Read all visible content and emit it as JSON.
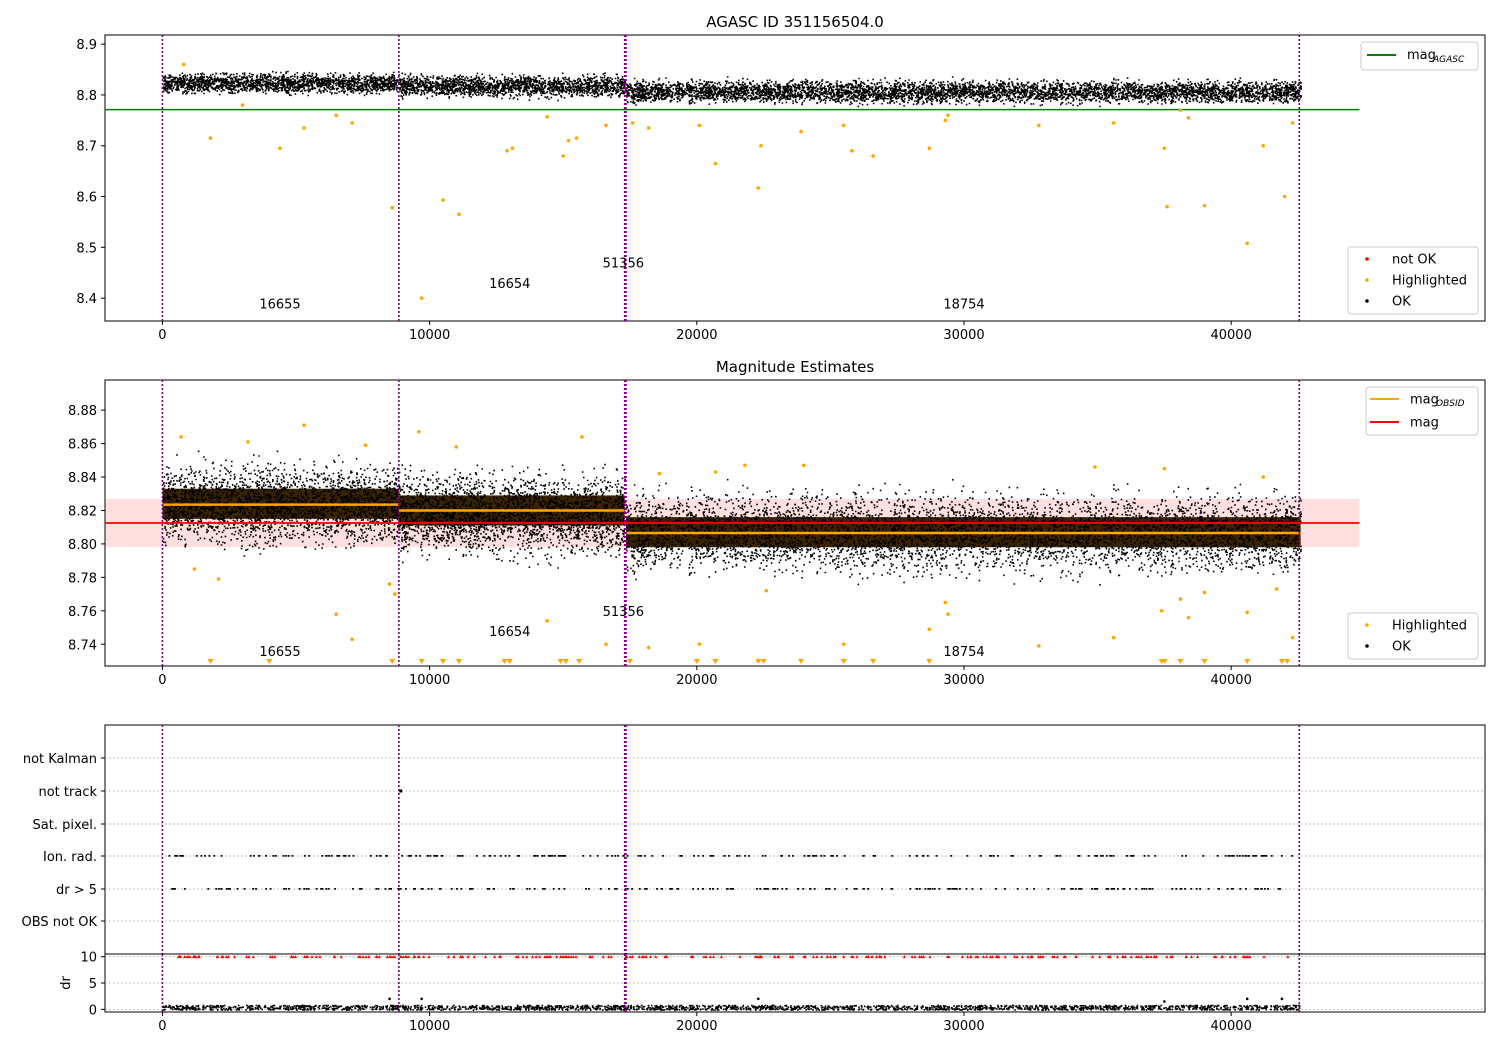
{
  "figure": {
    "title_top": "AGASC ID 351156504.0",
    "title_mid": "Magnitude Estimates"
  },
  "chart_data": [
    {
      "id": "agasc-panel",
      "type": "scatter",
      "title": "AGASC ID 351156504.0",
      "xlim": [
        -2150,
        49500
      ],
      "ylim": [
        8.355,
        8.918
      ],
      "x_ticks": [
        0,
        10000,
        20000,
        30000,
        40000
      ],
      "x_tick_labels": [
        "0",
        "10000",
        "20000",
        "30000",
        "40000"
      ],
      "y_ticks": [
        8.4,
        8.5,
        8.6,
        8.7,
        8.8,
        8.9
      ],
      "y_tick_labels": [
        "8.4",
        "8.5",
        "8.6",
        "8.7",
        "8.8",
        "8.9"
      ],
      "obs_boundaries": [
        0,
        8850,
        17300,
        17350,
        42550
      ],
      "obs_labels": [
        {
          "text": "16655",
          "x": 4400,
          "y": 8.38
        },
        {
          "text": "16654",
          "x": 13000,
          "y": 8.42
        },
        {
          "text": "51356",
          "x": 17250,
          "y": 8.46
        },
        {
          "text": "18754",
          "x": 30000,
          "y": 8.38
        }
      ],
      "mag_agasc": {
        "value": 8.771,
        "x_range": [
          -2150,
          44800
        ]
      },
      "ok_band_segments": [
        {
          "x0": 0,
          "x1": 8850,
          "y_lo": 8.797,
          "y_hi": 8.851,
          "center": 8.824
        },
        {
          "x0": 8850,
          "x1": 17300,
          "y_lo": 8.789,
          "y_hi": 8.848,
          "center": 8.82
        },
        {
          "x0": 17350,
          "x1": 42600,
          "y_lo": 8.777,
          "y_hi": 8.838,
          "center": 8.807
        }
      ],
      "highlighted": {
        "x": [
          800,
          1800,
          3000,
          4400,
          5300,
          6500,
          7100,
          8600,
          10500,
          11100,
          12900,
          13100,
          14400,
          15000,
          15200,
          15500,
          16600,
          17600,
          18200,
          20100,
          20700,
          22300,
          22400,
          23900,
          25500,
          25800,
          26600,
          28700,
          29300,
          29400,
          32800,
          35600,
          37500,
          37600,
          38100,
          38400,
          39000,
          40600,
          41200,
          42000,
          42300,
          9700
        ],
        "y": [
          8.86,
          8.715,
          8.78,
          8.695,
          8.735,
          8.76,
          8.745,
          8.578,
          8.593,
          8.565,
          8.69,
          8.695,
          8.757,
          8.68,
          8.71,
          8.715,
          8.74,
          8.745,
          8.735,
          8.74,
          8.665,
          8.617,
          8.7,
          8.728,
          8.74,
          8.69,
          8.68,
          8.695,
          8.75,
          8.76,
          8.74,
          8.745,
          8.695,
          8.58,
          8.77,
          8.755,
          8.582,
          8.508,
          8.7,
          8.6,
          8.745,
          8.4
        ]
      },
      "legend_lines": [
        {
          "label_main": "mag",
          "label_sub": "AGASC",
          "color": "#008000"
        }
      ],
      "legend_points": [
        {
          "label": "not OK",
          "color": "#ff0000"
        },
        {
          "label": "Highlighted",
          "color": "#ffa500"
        },
        {
          "label": "OK",
          "color": "#000000"
        }
      ]
    },
    {
      "id": "estimates-panel",
      "type": "scatter",
      "title": "Magnitude Estimates",
      "xlim": [
        -2150,
        49500
      ],
      "ylim": [
        8.727,
        8.898
      ],
      "x_ticks": [
        0,
        10000,
        20000,
        30000,
        40000
      ],
      "x_tick_labels": [
        "0",
        "10000",
        "20000",
        "30000",
        "40000"
      ],
      "y_ticks": [
        8.74,
        8.76,
        8.78,
        8.8,
        8.82,
        8.84,
        8.86,
        8.88
      ],
      "y_tick_labels": [
        "8.74",
        "8.76",
        "8.78",
        "8.80",
        "8.82",
        "8.84",
        "8.86",
        "8.88"
      ],
      "obs_boundaries": [
        0,
        8850,
        17300,
        17350,
        42550
      ],
      "obs_labels": [
        {
          "text": "16655",
          "x": 4400,
          "y": 8.733
        },
        {
          "text": "16654",
          "x": 13000,
          "y": 8.745
        },
        {
          "text": "51356",
          "x": 17250,
          "y": 8.757
        },
        {
          "text": "18754",
          "x": 30000,
          "y": 8.733
        }
      ],
      "mag": {
        "value": 8.8125,
        "band_lo": 8.798,
        "band_hi": 8.827,
        "x_range": [
          -2150,
          44800
        ]
      },
      "mag_obsid": [
        {
          "x0": 0,
          "x1": 8850,
          "value": 8.8235
        },
        {
          "x0": 8850,
          "x1": 17300,
          "value": 8.82
        },
        {
          "x0": 17350,
          "x1": 42600,
          "value": 8.8065
        }
      ],
      "ok_band_segments": [
        {
          "x0": 0,
          "x1": 8850,
          "y_lo": 8.791,
          "y_hi": 8.857,
          "center": 8.824
        },
        {
          "x0": 8850,
          "x1": 17300,
          "y_lo": 8.784,
          "y_hi": 8.852,
          "center": 8.82
        },
        {
          "x0": 17350,
          "x1": 42600,
          "y_lo": 8.774,
          "y_hi": 8.84,
          "center": 8.807
        }
      ],
      "highlighted": {
        "x": [
          700,
          1200,
          2100,
          3200,
          5300,
          6500,
          7100,
          7600,
          8500,
          8700,
          9600,
          11000,
          14400,
          15700,
          16600,
          18200,
          18600,
          20100,
          20700,
          21800,
          22600,
          24000,
          25500,
          28700,
          29300,
          29400,
          32800,
          34900,
          35600,
          37400,
          37500,
          38100,
          38400,
          39000,
          40600,
          41200,
          41700,
          42300
        ],
        "y": [
          8.864,
          8.785,
          8.779,
          8.861,
          8.871,
          8.758,
          8.743,
          8.859,
          8.776,
          8.77,
          8.867,
          8.858,
          8.754,
          8.864,
          8.74,
          8.738,
          8.842,
          8.74,
          8.843,
          8.847,
          8.772,
          8.847,
          8.74,
          8.749,
          8.765,
          8.758,
          8.739,
          8.846,
          8.744,
          8.76,
          8.845,
          8.767,
          8.756,
          8.771,
          8.759,
          8.84,
          8.773,
          8.744
        ]
      },
      "clipped_markers_x": [
        1800,
        4000,
        8600,
        9700,
        10500,
        11100,
        12800,
        13000,
        14900,
        15100,
        15600,
        17500,
        20000,
        20700,
        22300,
        22500,
        23900,
        25500,
        26600,
        28700,
        37400,
        37500,
        38100,
        39000,
        40600,
        41900,
        42100
      ],
      "legend_lines": [
        {
          "label_main": "mag",
          "label_sub": "OBSID",
          "color": "#ffa500"
        },
        {
          "label_main": "mag",
          "label_sub": "",
          "color": "#ff0000"
        }
      ],
      "legend_points": [
        {
          "label": "Highlighted",
          "color": "#ffa500"
        },
        {
          "label": "OK",
          "color": "#000000"
        }
      ]
    },
    {
      "id": "flags-panel",
      "type": "scatter",
      "xlim": [
        -2150,
        49500
      ],
      "obs_boundaries": [
        0,
        8850,
        17300,
        17350,
        42550
      ],
      "flag_labels": [
        "not Kalman",
        "not track",
        "Sat. pixel.",
        "Ion. rad.",
        "dr > 5",
        "OBS not OK"
      ],
      "flag_rows_with_points": [
        "Ion. rad.",
        "dr > 5"
      ],
      "not_track_point_x": 8900
    },
    {
      "id": "dr-panel",
      "type": "scatter",
      "xlim": [
        -2150,
        49500
      ],
      "ylim": [
        -0.5,
        10.5
      ],
      "ylabel": "dr",
      "y_ticks": [
        0,
        5,
        10
      ],
      "y_tick_labels": [
        "0",
        "5",
        "10"
      ],
      "x_ticks": [
        0,
        10000,
        20000,
        30000,
        40000
      ],
      "x_tick_labels": [
        "0",
        "10000",
        "20000",
        "30000",
        "40000"
      ],
      "obs_boundaries": [
        0,
        8850,
        17300,
        17350,
        42550
      ],
      "clipped_value": 10,
      "outliers": {
        "x": [
          8500,
          9700,
          22300,
          37500,
          40600,
          41900
        ],
        "y": [
          2.0,
          2.0,
          2.0,
          1.5,
          2.0,
          2.0
        ]
      }
    }
  ]
}
